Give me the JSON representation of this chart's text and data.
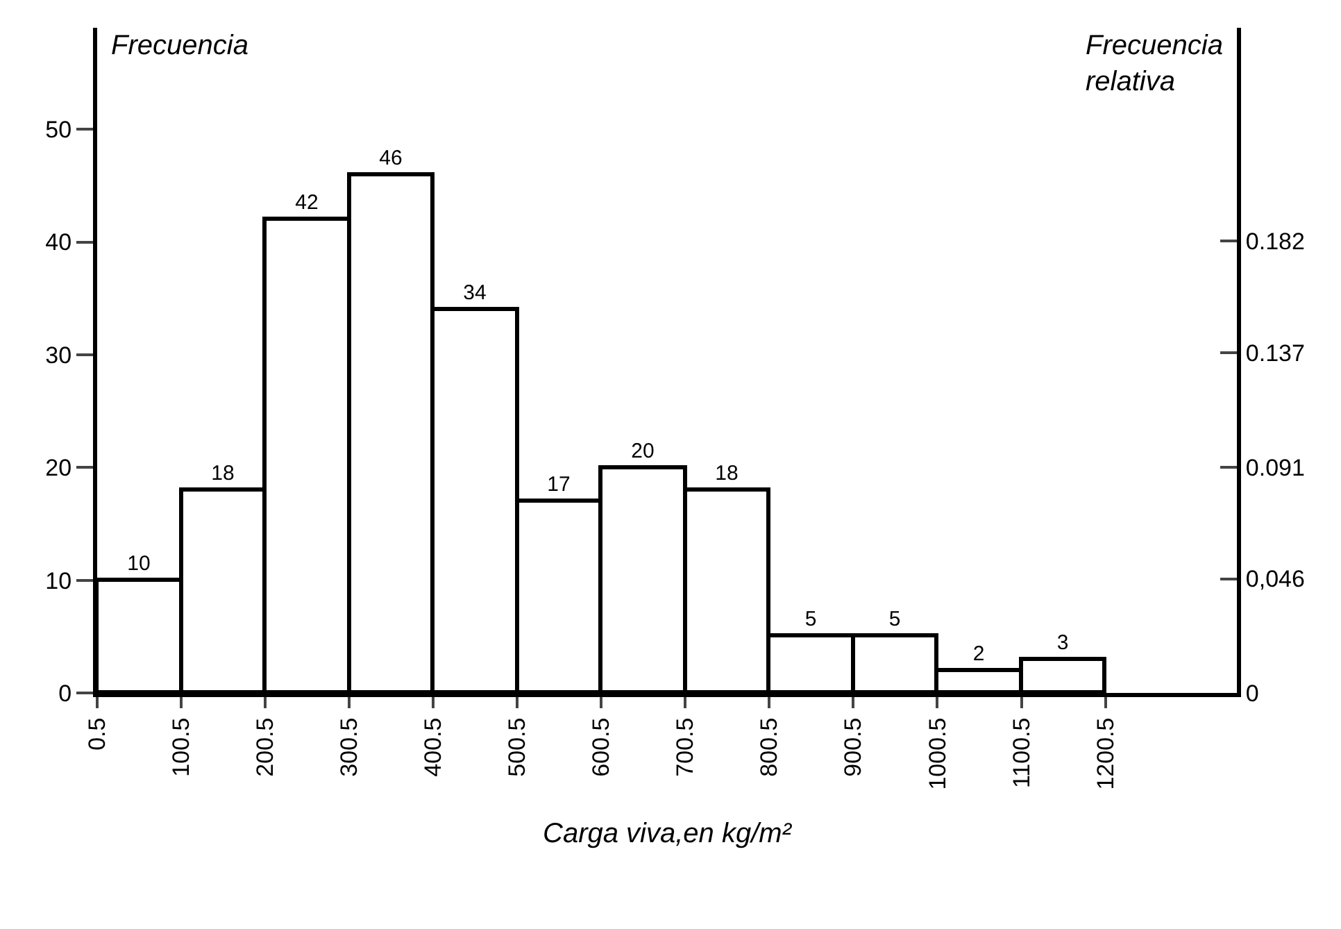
{
  "chart_data": {
    "type": "histogram",
    "ylabel": "Frecuencia",
    "y2label": "Frecuencia relativa",
    "xlabel": "Carga viva,en kg/m²",
    "bins": [
      0.5,
      100.5,
      200.5,
      300.5,
      400.5,
      500.5,
      600.5,
      700.5,
      800.5,
      900.5,
      1000.5,
      1100.5,
      1200.5
    ],
    "values": [
      10,
      18,
      42,
      46,
      34,
      17,
      20,
      18,
      5,
      5,
      2,
      3
    ],
    "color": "#ffffff",
    "data_labels": true,
    "grid": false,
    "xlim": [
      0.5,
      1357
    ],
    "xticks": [
      0.5,
      100.5,
      200.5,
      300.5,
      400.5,
      500.5,
      600.5,
      700.5,
      800.5,
      900.5,
      1000.5,
      1100.5,
      1200.5
    ],
    "ylim": [
      0,
      59
    ],
    "yticks": [
      0,
      10,
      20,
      30,
      40,
      50
    ],
    "y2lim": [
      0,
      0.268
    ],
    "y2ticks": [
      0,
      {
        "value": 0.046,
        "label": "0,046"
      },
      0.091,
      0.137,
      0.182
    ]
  }
}
